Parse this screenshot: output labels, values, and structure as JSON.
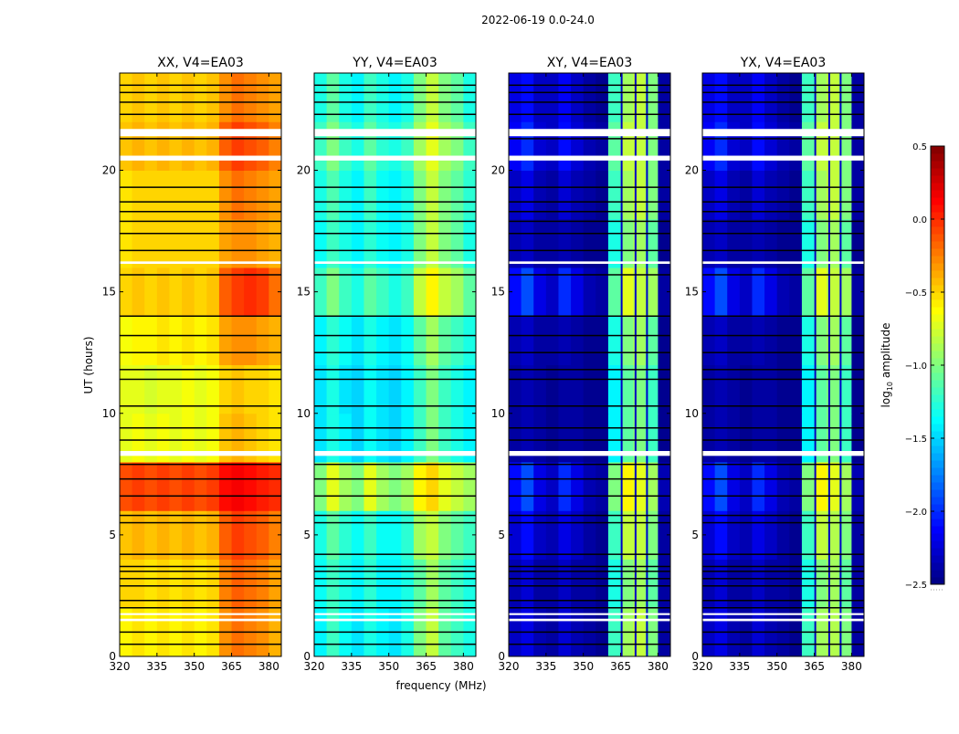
{
  "chart_data": {
    "type": "heatmap",
    "title": "2022-06-19 0.0-24.0",
    "xlabel": "frequency (MHz)",
    "ylabel": "UT (hours)",
    "xlim": [
      320,
      385
    ],
    "ylim": [
      0,
      24
    ],
    "xticks": [
      "320",
      "335",
      "350",
      "365",
      "380"
    ],
    "yticks": [
      "0",
      "5",
      "10",
      "15",
      "20"
    ],
    "freq_bins_MHz": [
      320,
      325,
      330,
      335,
      340,
      345,
      350,
      355,
      360,
      365,
      370,
      375,
      380
    ],
    "bin_width_MHz": 5,
    "time_bins_hours": [
      0,
      2,
      4,
      6,
      8,
      10,
      12,
      14,
      16,
      18,
      20,
      22
    ],
    "bin_height_hours": 2,
    "flagged_gaps_hours": [
      [
        1.45,
        1.55
      ],
      [
        1.7,
        1.78
      ],
      [
        8.25,
        8.45
      ],
      [
        16.15,
        16.25
      ],
      [
        20.4,
        20.6
      ],
      [
        21.4,
        21.7
      ]
    ],
    "black_lines_hours": [
      0.5,
      1.0,
      2.0,
      2.3,
      2.9,
      3.2,
      3.5,
      3.7,
      4.2,
      5.5,
      5.8,
      6.6,
      7.3,
      7.9,
      8.9,
      9.4,
      10.3,
      11.4,
      11.8,
      12.5,
      13.2,
      14.0,
      15.7,
      16.7,
      17.4,
      17.9,
      18.3,
      18.7,
      19.3,
      21.3,
      22.3,
      22.8,
      23.2,
      23.5
    ],
    "flagged_channels_MHz": [
      365.4,
      371.0,
      375.6
    ],
    "panels": [
      {
        "title": "XX, V4=EA03",
        "values": [
          [
            -0.6,
            -0.55,
            -0.6,
            -0.55,
            -0.6,
            -0.55,
            -0.6,
            -0.55,
            -0.3,
            -0.2,
            -0.25,
            -0.3,
            -0.4
          ],
          [
            -0.5,
            -0.5,
            -0.55,
            -0.5,
            -0.55,
            -0.5,
            -0.55,
            -0.5,
            -0.25,
            -0.15,
            -0.2,
            -0.25,
            -0.35
          ],
          [
            -0.45,
            -0.4,
            -0.45,
            -0.4,
            -0.45,
            -0.4,
            -0.45,
            -0.4,
            -0.15,
            -0.05,
            -0.1,
            -0.15,
            -0.25
          ],
          [
            -0.1,
            -0.05,
            -0.1,
            -0.05,
            -0.1,
            -0.05,
            -0.1,
            -0.05,
            0.1,
            0.15,
            0.1,
            0.05,
            0.0
          ],
          [
            -0.7,
            -0.65,
            -0.7,
            -0.65,
            -0.7,
            -0.65,
            -0.7,
            -0.65,
            -0.45,
            -0.4,
            -0.45,
            -0.5,
            -0.55
          ],
          [
            -0.7,
            -0.7,
            -0.75,
            -0.7,
            -0.7,
            -0.65,
            -0.7,
            -0.65,
            -0.5,
            -0.45,
            -0.5,
            -0.5,
            -0.55
          ],
          [
            -0.65,
            -0.6,
            -0.6,
            -0.55,
            -0.6,
            -0.55,
            -0.6,
            -0.55,
            -0.35,
            -0.3,
            -0.3,
            -0.35,
            -0.4
          ],
          [
            -0.5,
            -0.45,
            -0.5,
            -0.45,
            -0.5,
            -0.45,
            -0.5,
            -0.45,
            -0.15,
            -0.05,
            0.0,
            -0.05,
            -0.2
          ],
          [
            -0.55,
            -0.5,
            -0.5,
            -0.5,
            -0.5,
            -0.5,
            -0.5,
            -0.5,
            -0.35,
            -0.3,
            -0.3,
            -0.35,
            -0.4
          ],
          [
            -0.55,
            -0.5,
            -0.5,
            -0.5,
            -0.5,
            -0.5,
            -0.5,
            -0.5,
            -0.3,
            -0.2,
            -0.25,
            -0.3,
            -0.35
          ],
          [
            -0.45,
            -0.4,
            -0.45,
            -0.4,
            -0.45,
            -0.4,
            -0.45,
            -0.4,
            -0.15,
            -0.05,
            -0.1,
            -0.15,
            -0.25
          ],
          [
            -0.5,
            -0.45,
            -0.5,
            -0.45,
            -0.5,
            -0.45,
            -0.5,
            -0.45,
            -0.3,
            -0.2,
            -0.25,
            -0.3,
            -0.35
          ]
        ]
      },
      {
        "title": "YY, V4=EA03",
        "values": [
          [
            -1.4,
            -1.2,
            -1.35,
            -1.45,
            -1.3,
            -1.4,
            -1.45,
            -1.3,
            -1.0,
            -0.8,
            -1.1,
            -1.2,
            -1.3
          ],
          [
            -1.35,
            -1.2,
            -1.3,
            -1.4,
            -1.25,
            -1.4,
            -1.4,
            -1.3,
            -1.1,
            -0.9,
            -1.1,
            -1.2,
            -1.3
          ],
          [
            -1.3,
            -1.1,
            -1.25,
            -1.35,
            -1.2,
            -1.35,
            -1.35,
            -1.25,
            -0.9,
            -0.8,
            -1.0,
            -1.1,
            -1.2
          ],
          [
            -1.0,
            -0.7,
            -0.9,
            -1.0,
            -0.7,
            -0.9,
            -1.0,
            -0.9,
            -0.6,
            -0.5,
            -0.7,
            -0.8,
            -0.9
          ],
          [
            -1.45,
            -1.3,
            -1.4,
            -1.5,
            -1.35,
            -1.45,
            -1.5,
            -1.4,
            -1.2,
            -1.0,
            -1.2,
            -1.3,
            -1.4
          ],
          [
            -1.45,
            -1.3,
            -1.45,
            -1.5,
            -1.35,
            -1.45,
            -1.5,
            -1.4,
            -1.2,
            -1.0,
            -1.2,
            -1.3,
            -1.4
          ],
          [
            -1.4,
            -1.25,
            -1.35,
            -1.45,
            -1.3,
            -1.4,
            -1.45,
            -1.35,
            -1.1,
            -0.9,
            -1.1,
            -1.2,
            -1.3
          ],
          [
            -1.2,
            -1.0,
            -1.2,
            -1.3,
            -1.1,
            -1.2,
            -1.3,
            -1.2,
            -0.8,
            -0.6,
            -0.8,
            -0.9,
            -1.1
          ],
          [
            -1.35,
            -1.2,
            -1.3,
            -1.4,
            -1.25,
            -1.35,
            -1.4,
            -1.3,
            -1.0,
            -0.8,
            -1.0,
            -1.1,
            -1.3
          ],
          [
            -1.3,
            -1.15,
            -1.3,
            -1.4,
            -1.2,
            -1.35,
            -1.4,
            -1.3,
            -1.0,
            -0.8,
            -1.0,
            -1.1,
            -1.25
          ],
          [
            -1.2,
            -1.0,
            -1.2,
            -1.3,
            -1.1,
            -1.25,
            -1.3,
            -1.2,
            -0.9,
            -0.7,
            -0.9,
            -1.0,
            -1.2
          ],
          [
            -1.3,
            -1.1,
            -1.3,
            -1.4,
            -1.2,
            -1.3,
            -1.4,
            -1.3,
            -1.0,
            -0.8,
            -1.0,
            -1.1,
            -1.3
          ]
        ]
      },
      {
        "title": "XY, V4=EA03",
        "values": [
          [
            -2.3,
            -2.2,
            -2.35,
            -2.4,
            -2.25,
            -2.35,
            -2.4,
            -2.45,
            -1.2,
            -0.9,
            -0.8,
            -1.0,
            -2.4
          ],
          [
            -2.35,
            -2.25,
            -2.4,
            -2.4,
            -2.3,
            -2.4,
            -2.4,
            -2.45,
            -1.3,
            -1.0,
            -0.9,
            -1.1,
            -2.4
          ],
          [
            -2.25,
            -2.1,
            -2.3,
            -2.35,
            -2.2,
            -2.3,
            -2.4,
            -2.45,
            -1.2,
            -0.8,
            -0.8,
            -1.0,
            -2.4
          ],
          [
            -2.1,
            -1.9,
            -2.2,
            -2.3,
            -2.0,
            -2.2,
            -2.35,
            -2.4,
            -1.0,
            -0.6,
            -0.7,
            -0.9,
            -2.35
          ],
          [
            -2.4,
            -2.35,
            -2.4,
            -2.45,
            -2.4,
            -2.4,
            -2.45,
            -2.45,
            -1.4,
            -1.1,
            -1.0,
            -1.2,
            -2.45
          ],
          [
            -2.4,
            -2.35,
            -2.4,
            -2.45,
            -2.4,
            -2.4,
            -2.45,
            -2.45,
            -1.4,
            -1.1,
            -1.0,
            -1.2,
            -2.45
          ],
          [
            -2.35,
            -2.3,
            -2.4,
            -2.4,
            -2.35,
            -2.4,
            -2.45,
            -2.45,
            -1.3,
            -1.0,
            -0.9,
            -1.1,
            -2.45
          ],
          [
            -2.1,
            -1.9,
            -2.2,
            -2.3,
            -2.0,
            -2.2,
            -2.35,
            -2.4,
            -1.1,
            -0.7,
            -0.8,
            -0.9,
            -2.4
          ],
          [
            -2.35,
            -2.3,
            -2.4,
            -2.4,
            -2.35,
            -2.4,
            -2.45,
            -2.45,
            -1.3,
            -1.0,
            -0.9,
            -1.1,
            -2.45
          ],
          [
            -2.3,
            -2.2,
            -2.35,
            -2.4,
            -2.25,
            -2.35,
            -2.4,
            -2.45,
            -1.2,
            -0.9,
            -0.8,
            -1.0,
            -2.4
          ],
          [
            -2.15,
            -2.0,
            -2.25,
            -2.3,
            -2.1,
            -2.25,
            -2.35,
            -2.4,
            -1.1,
            -0.8,
            -0.8,
            -1.0,
            -2.4
          ],
          [
            -2.2,
            -2.1,
            -2.3,
            -2.3,
            -2.15,
            -2.3,
            -2.4,
            -2.45,
            -1.2,
            -0.9,
            -0.8,
            -1.0,
            -2.4
          ]
        ]
      },
      {
        "title": "YX, V4=EA03",
        "values": [
          [
            -2.3,
            -2.2,
            -2.35,
            -2.4,
            -2.25,
            -2.35,
            -2.4,
            -2.45,
            -1.2,
            -0.9,
            -0.85,
            -1.0,
            -2.4
          ],
          [
            -2.35,
            -2.25,
            -2.4,
            -2.4,
            -2.3,
            -2.4,
            -2.4,
            -2.45,
            -1.3,
            -1.0,
            -0.9,
            -1.1,
            -2.4
          ],
          [
            -2.25,
            -2.1,
            -2.3,
            -2.35,
            -2.2,
            -2.3,
            -2.4,
            -2.45,
            -1.2,
            -0.8,
            -0.85,
            -1.0,
            -2.4
          ],
          [
            -2.1,
            -1.9,
            -2.2,
            -2.3,
            -2.0,
            -2.2,
            -2.35,
            -2.4,
            -1.0,
            -0.6,
            -0.7,
            -0.9,
            -2.35
          ],
          [
            -2.4,
            -2.35,
            -2.4,
            -2.45,
            -2.4,
            -2.4,
            -2.45,
            -2.45,
            -1.4,
            -1.1,
            -1.0,
            -1.2,
            -2.45
          ],
          [
            -2.4,
            -2.35,
            -2.4,
            -2.45,
            -2.4,
            -2.4,
            -2.45,
            -2.45,
            -1.4,
            -1.1,
            -1.0,
            -1.2,
            -2.45
          ],
          [
            -2.35,
            -2.3,
            -2.4,
            -2.4,
            -2.35,
            -2.4,
            -2.45,
            -2.45,
            -1.3,
            -1.0,
            -0.9,
            -1.1,
            -2.45
          ],
          [
            -2.1,
            -1.9,
            -2.2,
            -2.3,
            -2.0,
            -2.2,
            -2.35,
            -2.4,
            -1.1,
            -0.7,
            -0.8,
            -0.9,
            -2.4
          ],
          [
            -2.35,
            -2.3,
            -2.4,
            -2.4,
            -2.35,
            -2.4,
            -2.45,
            -2.45,
            -1.3,
            -1.0,
            -0.9,
            -1.1,
            -2.45
          ],
          [
            -2.3,
            -2.2,
            -2.35,
            -2.4,
            -2.25,
            -2.35,
            -2.4,
            -2.45,
            -1.2,
            -0.9,
            -0.8,
            -1.0,
            -2.4
          ],
          [
            -2.15,
            -2.0,
            -2.25,
            -2.3,
            -2.1,
            -2.25,
            -2.35,
            -2.4,
            -1.1,
            -0.8,
            -0.8,
            -1.0,
            -2.4
          ],
          [
            -2.2,
            -2.1,
            -2.3,
            -2.3,
            -2.15,
            -2.3,
            -2.4,
            -2.45,
            -1.2,
            -0.9,
            -0.8,
            -1.0,
            -2.4
          ]
        ]
      }
    ],
    "colorbar": {
      "label_prefix": "log",
      "label_sub": "10",
      "label_suffix": " amplitude",
      "colormap": "jet",
      "range": [
        -2.5,
        0.5
      ],
      "ticks": [
        "0.5",
        "0.0",
        "−0.5",
        "−1.0",
        "−1.5",
        "−2.0",
        "−2.5"
      ],
      "tick_values": [
        0.5,
        0.0,
        -0.5,
        -1.0,
        -1.5,
        -2.0,
        -2.5
      ]
    }
  }
}
